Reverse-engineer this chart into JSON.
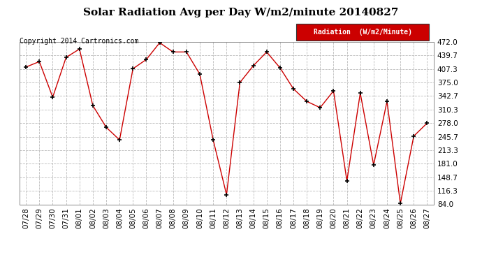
{
  "title": "Solar Radiation Avg per Day W/m2/minute 20140827",
  "copyright_text": "Copyright 2014 Cartronics.com",
  "legend_label": "Radiation  (W/m2/Minute)",
  "dates": [
    "07/28",
    "07/29",
    "07/30",
    "07/31",
    "08/01",
    "08/02",
    "08/03",
    "08/04",
    "08/05",
    "08/06",
    "08/07",
    "08/08",
    "08/09",
    "08/10",
    "08/11",
    "08/12",
    "08/13",
    "08/14",
    "08/15",
    "08/16",
    "08/17",
    "08/18",
    "08/19",
    "08/20",
    "08/21",
    "08/22",
    "08/23",
    "08/24",
    "08/25",
    "08/26",
    "08/27"
  ],
  "values": [
    412,
    425,
    340,
    435,
    455,
    320,
    268,
    238,
    408,
    430,
    470,
    448,
    448,
    395,
    238,
    107,
    375,
    415,
    448,
    410,
    360,
    330,
    315,
    355,
    140,
    350,
    178,
    330,
    86,
    247,
    278
  ],
  "y_ticks": [
    84.0,
    116.3,
    148.7,
    181.0,
    213.3,
    245.7,
    278.0,
    310.3,
    342.7,
    375.0,
    407.3,
    439.7,
    472.0
  ],
  "ylim": [
    84.0,
    472.0
  ],
  "line_color": "#cc0000",
  "marker": "+",
  "marker_color": "#000000",
  "marker_size": 5,
  "bg_color": "#ffffff",
  "plot_bg_color": "#ffffff",
  "grid_color": "#bbbbbb",
  "grid_style": "--",
  "title_fontsize": 11,
  "copyright_fontsize": 7,
  "tick_fontsize": 7.5,
  "legend_bg": "#cc0000",
  "legend_text_color": "#ffffff",
  "legend_fontsize": 7
}
